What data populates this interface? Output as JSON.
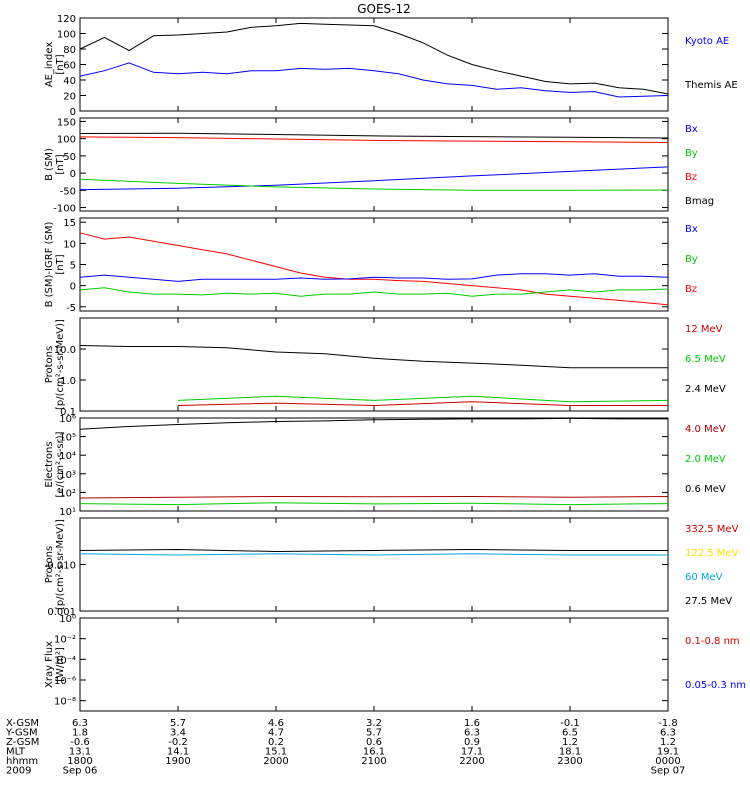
{
  "title": "GOES-12",
  "panels": [
    {
      "id": "ae",
      "ylabel": [
        "AE_index",
        "[nT]"
      ],
      "scale": "linear",
      "ylim": [
        0,
        120
      ],
      "ticks": [
        0,
        20,
        40,
        60,
        80,
        100,
        120
      ],
      "legend": [
        {
          "label": "Kyoto AE",
          "color": "#0000ff"
        },
        {
          "label": "Themis AE",
          "color": "#000000"
        }
      ]
    },
    {
      "id": "bsm",
      "ylabel": [
        "B (SM)",
        "[nT]"
      ],
      "scale": "linear",
      "ylim": [
        -110,
        160
      ],
      "ticks": [
        -100,
        -50,
        0,
        50,
        100,
        150
      ],
      "legend": [
        {
          "label": "Bx",
          "color": "#0000ff"
        },
        {
          "label": "By",
          "color": "#00cc00"
        },
        {
          "label": "Bz",
          "color": "#ff0000"
        },
        {
          "label": "Bmag",
          "color": "#000000"
        }
      ]
    },
    {
      "id": "bdiff",
      "ylabel": [
        "B (SM)-IGRF (SM)",
        "[nT]"
      ],
      "scale": "linear",
      "ylim": [
        -6,
        16
      ],
      "ticks": [
        -5,
        0,
        5,
        10,
        15
      ],
      "legend": [
        {
          "label": "Bx",
          "color": "#0000ff"
        },
        {
          "label": "By",
          "color": "#00cc00"
        },
        {
          "label": "Bz",
          "color": "#ff0000"
        }
      ]
    },
    {
      "id": "protons_low",
      "ylabel": [
        "Protons",
        "[p/(cm²-s-sr-MeV)]"
      ],
      "scale": "log",
      "ylim": [
        0.1,
        100
      ],
      "ticks": [
        0.1,
        1.0,
        10.0
      ],
      "tick_labels": [
        "0.1",
        "1.0",
        "10.0"
      ],
      "legend": [
        {
          "label": "12 MeV",
          "color": "#cc0000"
        },
        {
          "label": "6.5 MeV",
          "color": "#00cc00"
        },
        {
          "label": "2.4 MeV",
          "color": "#000000"
        }
      ]
    },
    {
      "id": "electrons",
      "ylabel": [
        "Electrons",
        "[e/(cm²-s-sr)]"
      ],
      "scale": "log",
      "ylim": [
        10,
        1000000
      ],
      "ticks": [
        10,
        100,
        1000,
        10000,
        100000,
        1000000
      ],
      "tick_labels": [
        "10¹",
        "10²",
        "10³",
        "10⁴",
        "10⁵",
        "10⁶"
      ],
      "legend": [
        {
          "label": "4.0 MeV",
          "color": "#aa0000"
        },
        {
          "label": "2.0 MeV",
          "color": "#00cc00"
        },
        {
          "label": "0.6 MeV",
          "color": "#000000"
        }
      ]
    },
    {
      "id": "protons_high",
      "ylabel": [
        "Protons",
        "[p/(cm²-s-sr-MeV)]"
      ],
      "scale": "log",
      "ylim": [
        0.001,
        0.1
      ],
      "ticks": [
        0.001,
        0.01
      ],
      "tick_labels": [
        "0.001",
        "0.010"
      ],
      "legend": [
        {
          "label": "332.5 MeV",
          "color": "#cc0000"
        },
        {
          "label": "122.5 MeV",
          "color": "#ffdd00"
        },
        {
          "label": "60 MeV",
          "color": "#00aadd"
        },
        {
          "label": "27.5 MeV",
          "color": "#000000"
        }
      ]
    },
    {
      "id": "xray",
      "ylabel": [
        "Xray Flux",
        "[W/m²]"
      ],
      "scale": "log",
      "ylim": [
        1e-09,
        1
      ],
      "ticks": [
        1e-08,
        1e-06,
        0.0001,
        0.01,
        1
      ],
      "tick_labels": [
        "10⁻⁸",
        "10⁻⁶",
        "10⁻⁴",
        "10⁻²",
        "10⁰"
      ],
      "legend": [
        {
          "label": "0.1-0.8 nm",
          "color": "#cc0000"
        },
        {
          "label": "0.05-0.3 nm",
          "color": "#0000ff"
        }
      ]
    }
  ],
  "ephemeris": {
    "rows": [
      {
        "label": "X-GSM",
        "values": [
          "6.3",
          "5.7",
          "4.6",
          "3.2",
          "1.6",
          "-0.1",
          "-1.8"
        ]
      },
      {
        "label": "Y-GSM",
        "values": [
          "1.8",
          "3.4",
          "4.7",
          "5.7",
          "6.3",
          "6.5",
          "6.3"
        ]
      },
      {
        "label": "Z-GSM",
        "values": [
          "-0.6",
          "-0.2",
          "0.2",
          "0.6",
          "0.9",
          "1.2",
          "1.2"
        ]
      },
      {
        "label": "MLT",
        "values": [
          "13.1",
          "14.1",
          "15.1",
          "16.1",
          "17.1",
          "18.1",
          "19.1"
        ]
      },
      {
        "label": "hhmm",
        "values": [
          "1800",
          "1900",
          "2000",
          "2100",
          "2200",
          "2300",
          "0000"
        ]
      }
    ],
    "year": "2009",
    "start_date": "Sep 06",
    "end_date": "Sep 07"
  },
  "chart_data": {
    "type": "line",
    "title": "GOES-12",
    "x_axis": {
      "hhmm": [
        "1800",
        "1900",
        "2000",
        "2100",
        "2200",
        "2300",
        "0000"
      ],
      "start_date": "Sep 06",
      "end_date": "Sep 07"
    },
    "panels": [
      {
        "id": "ae",
        "series": [
          {
            "name": "Themis AE",
            "x": [
              "1800",
              "1815",
              "1830",
              "1845",
              "1900",
              "1915",
              "1930",
              "1945",
              "2000",
              "2015",
              "2030",
              "2045",
              "2100",
              "2115",
              "2130",
              "2145",
              "2200",
              "2215",
              "2230",
              "2245",
              "2300",
              "2315",
              "2330",
              "2345",
              "0000"
            ],
            "values": [
              80,
              95,
              78,
              97,
              98,
              100,
              102,
              108,
              110,
              113,
              112,
              111,
              110,
              100,
              88,
              72,
              60,
              52,
              45,
              38,
              35,
              36,
              30,
              28,
              22
            ]
          },
          {
            "name": "Kyoto AE",
            "x": [
              "1800",
              "1815",
              "1830",
              "1845",
              "1900",
              "1915",
              "1930",
              "1945",
              "2000",
              "2015",
              "2030",
              "2045",
              "2100",
              "2115",
              "2130",
              "2145",
              "2200",
              "2215",
              "2230",
              "2245",
              "2300",
              "2315",
              "2330",
              "2345",
              "0000"
            ],
            "values": [
              45,
              52,
              62,
              50,
              48,
              50,
              48,
              52,
              52,
              55,
              54,
              55,
              52,
              48,
              40,
              35,
              33,
              28,
              30,
              26,
              24,
              25,
              18,
              19,
              20
            ]
          }
        ]
      },
      {
        "id": "bsm",
        "series": [
          {
            "name": "Bmag",
            "x": [
              "1800",
              "1900",
              "2000",
              "2100",
              "2200",
              "2300",
              "0000"
            ],
            "values": [
              115,
              116,
              112,
              108,
              106,
              104,
              102
            ]
          },
          {
            "name": "Bz",
            "x": [
              "1800",
              "1900",
              "2000",
              "2100",
              "2200",
              "2300",
              "0000"
            ],
            "values": [
              105,
              103,
              99,
              95,
              93,
              91,
              89
            ]
          },
          {
            "name": "Bx",
            "x": [
              "1800",
              "1900",
              "2000",
              "2100",
              "2200",
              "2300",
              "0000"
            ],
            "values": [
              -48,
              -44,
              -35,
              -22,
              -8,
              5,
              18
            ]
          },
          {
            "name": "By",
            "x": [
              "1800",
              "1900",
              "2000",
              "2100",
              "2200",
              "2300",
              "0000"
            ],
            "values": [
              -18,
              -30,
              -40,
              -46,
              -50,
              -50,
              -49
            ]
          }
        ]
      },
      {
        "id": "bdiff",
        "series": [
          {
            "name": "Bz",
            "x": [
              "1800",
              "1815",
              "1830",
              "1845",
              "1900",
              "1915",
              "1930",
              "1945",
              "2000",
              "2015",
              "2030",
              "2045",
              "2100",
              "2115",
              "2130",
              "2145",
              "2200",
              "2215",
              "2230",
              "2245",
              "2300",
              "2315",
              "2330",
              "2345",
              "0000"
            ],
            "values": [
              12.5,
              11,
              11.5,
              10.5,
              9.5,
              8.5,
              7.5,
              6,
              4.5,
              3,
              2,
              1.5,
              1.5,
              1.2,
              1,
              0.5,
              0,
              -0.5,
              -1,
              -2,
              -2.5,
              -3,
              -3.5,
              -4,
              -4.5
            ]
          },
          {
            "name": "Bx",
            "x": [
              "1800",
              "1815",
              "1830",
              "1845",
              "1900",
              "1915",
              "1930",
              "1945",
              "2000",
              "2015",
              "2030",
              "2045",
              "2100",
              "2115",
              "2130",
              "2145",
              "2200",
              "2215",
              "2230",
              "2245",
              "2300",
              "2315",
              "2330",
              "2345",
              "0000"
            ],
            "values": [
              2,
              2.5,
              2,
              1.5,
              1,
              1.5,
              1.5,
              1.5,
              1.5,
              1.8,
              1.5,
              1.6,
              2,
              1.8,
              1.8,
              1.5,
              1.6,
              2.5,
              2.8,
              2.8,
              2.5,
              2.8,
              2.2,
              2.2,
              2
            ]
          },
          {
            "name": "By",
            "x": [
              "1800",
              "1815",
              "1830",
              "1845",
              "1900",
              "1915",
              "1930",
              "1945",
              "2000",
              "2015",
              "2030",
              "2045",
              "2100",
              "2115",
              "2130",
              "2145",
              "2200",
              "2215",
              "2230",
              "2245",
              "2300",
              "2315",
              "2330",
              "2345",
              "0000"
            ],
            "values": [
              -1,
              -0.5,
              -1.5,
              -2,
              -2,
              -2.2,
              -1.8,
              -2,
              -1.8,
              -2.5,
              -2,
              -2,
              -1.5,
              -2,
              -2,
              -1.8,
              -2.5,
              -2,
              -2,
              -1.5,
              -1,
              -1.5,
              -1,
              -1,
              -0.8
            ]
          }
        ]
      },
      {
        "id": "protons_low",
        "series": [
          {
            "name": "2.4 MeV",
            "x": [
              "1800",
              "1830",
              "1900",
              "1930",
              "2000",
              "2030",
              "2100",
              "2130",
              "2200",
              "2230",
              "2300",
              "2330",
              "0000"
            ],
            "values": [
              13,
              12,
              12,
              11,
              8,
              7,
              5,
              4,
              3.5,
              3,
              2.5,
              2.5,
              2.5
            ]
          },
          {
            "name": "6.5 MeV",
            "x": [
              "1900",
              "2000",
              "2100",
              "2200",
              "2300",
              "0000"
            ],
            "values": [
              0.22,
              0.3,
              0.22,
              0.3,
              0.2,
              0.22
            ]
          },
          {
            "name": "12 MeV",
            "x": [
              "1900",
              "2000",
              "2100",
              "2200",
              "2300",
              "0000"
            ],
            "values": [
              0.15,
              0.18,
              0.15,
              0.2,
              0.15,
              0.15
            ]
          }
        ]
      },
      {
        "id": "electrons",
        "series": [
          {
            "name": "0.6 MeV",
            "x": [
              "1800",
              "1830",
              "1900",
              "1930",
              "2000",
              "2030",
              "2100",
              "2130",
              "2200",
              "2230",
              "2300",
              "2330",
              "0000"
            ],
            "values": [
              250000,
              350000,
              450000,
              550000,
              650000,
              700000,
              800000,
              850000,
              900000,
              900000,
              950000,
              900000,
              900000
            ]
          },
          {
            "name": "4.0 MeV",
            "x": [
              "1800",
              "1900",
              "2000",
              "2100",
              "2200",
              "2300",
              "0000"
            ],
            "values": [
              50,
              55,
              60,
              58,
              60,
              55,
              60
            ]
          },
          {
            "name": "2.0 MeV",
            "x": [
              "1800",
              "1900",
              "2000",
              "2100",
              "2200",
              "2300",
              "0000"
            ],
            "values": [
              25,
              22,
              28,
              24,
              26,
              22,
              25
            ]
          }
        ]
      },
      {
        "id": "protons_high",
        "series": [
          {
            "name": "27.5 MeV",
            "x": [
              "1800",
              "1900",
              "2000",
              "2100",
              "2200",
              "2300",
              "0000"
            ],
            "values": [
              0.02,
              0.021,
              0.019,
              0.02,
              0.021,
              0.02,
              0.02
            ]
          },
          {
            "name": "60 MeV",
            "x": [
              "1800",
              "1900",
              "2000",
              "2100",
              "2200",
              "2300",
              "0000"
            ],
            "values": [
              0.017,
              0.016,
              0.017,
              0.016,
              0.017,
              0.016,
              0.016
            ]
          }
        ]
      },
      {
        "id": "xray",
        "series": []
      }
    ]
  }
}
